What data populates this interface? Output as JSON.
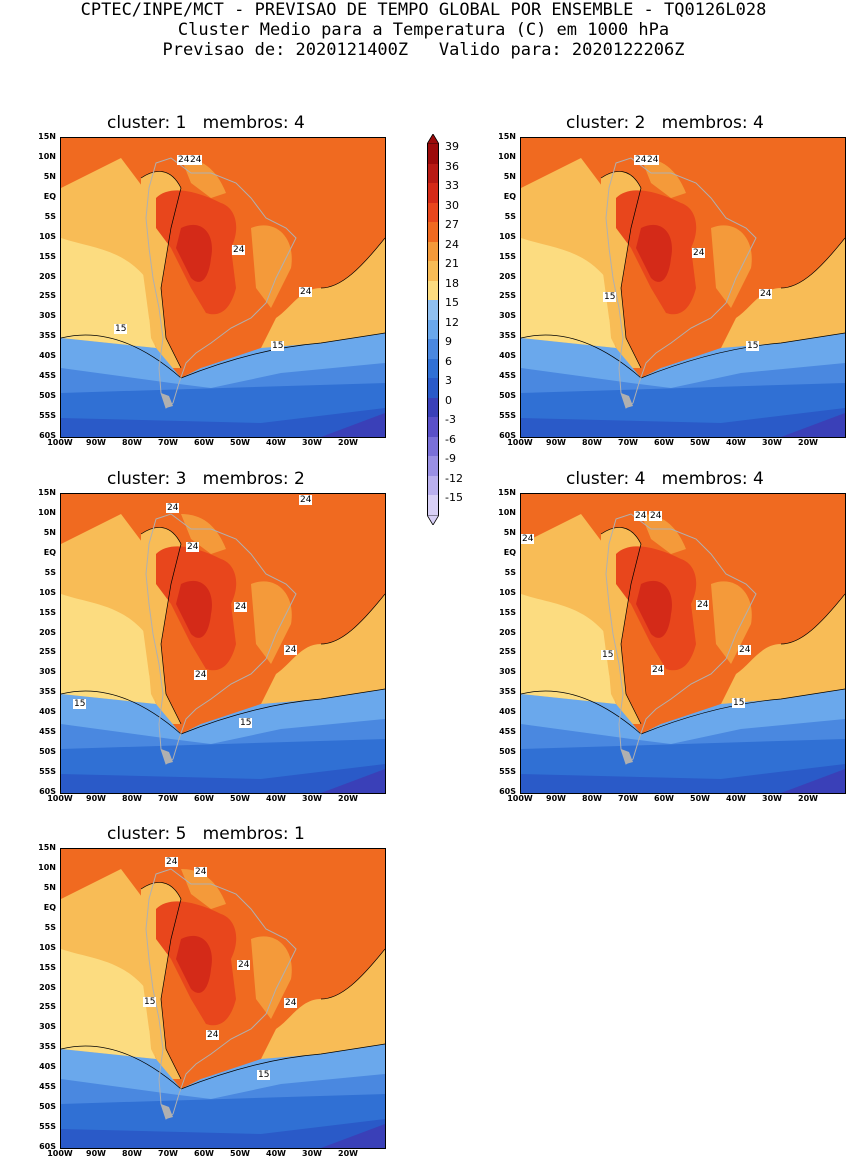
{
  "header": {
    "line1": "CPTEC/INPE/MCT - PREVISAO DE TEMPO GLOBAL POR ENSEMBLE - TQ0126L028",
    "line2": "Cluster Medio para a Temperatura (C) em 1000 hPa",
    "line3": "Previsao de: 2020121400Z   Valido para: 2020122206Z"
  },
  "axes": {
    "lat_labels": [
      "15N",
      "10N",
      "5N",
      "EQ",
      "5S",
      "10S",
      "15S",
      "20S",
      "25S",
      "30S",
      "35S",
      "40S",
      "45S",
      "50S",
      "55S",
      "60S"
    ],
    "lon_labels": [
      "100W",
      "90W",
      "80W",
      "70W",
      "60W",
      "50W",
      "40W",
      "30W",
      "20W"
    ]
  },
  "colorbar": {
    "labels": [
      "39",
      "36",
      "33",
      "30",
      "27",
      "24",
      "21",
      "18",
      "15",
      "12",
      "9",
      "6",
      "3",
      "0",
      "-3",
      "-6",
      "-9",
      "-12",
      "-15"
    ],
    "colors": [
      "#9c0a0a",
      "#b81a14",
      "#d42a18",
      "#e8461c",
      "#f06a20",
      "#f49a3a",
      "#f8bc56",
      "#fcdc80",
      "#90c0f0",
      "#6aa8ec",
      "#4a88e0",
      "#3070d4",
      "#2a5ac8",
      "#3a40b8",
      "#5a50c8",
      "#7a70d8",
      "#9a90e4",
      "#bab0ee",
      "#d8d0f6"
    ]
  },
  "clusters": [
    {
      "title": "cluster: 1   membros: 4",
      "labels": [
        "24",
        "24",
        "24",
        "24",
        "15",
        "15"
      ]
    },
    {
      "title": "cluster: 2   membros: 4",
      "labels": [
        "24",
        "24",
        "24",
        "24",
        "15",
        "15"
      ]
    },
    {
      "title": "cluster: 3   membros: 2",
      "labels": [
        "24",
        "24",
        "24",
        "24",
        "24",
        "24",
        "15",
        "15"
      ]
    },
    {
      "title": "cluster: 4   membros: 4",
      "labels": [
        "24",
        "24",
        "24",
        "24",
        "24",
        "24",
        "15",
        "15"
      ]
    },
    {
      "title": "cluster: 5   membros: 1",
      "labels": [
        "24",
        "24",
        "24",
        "24",
        "24",
        "15",
        "15"
      ]
    }
  ]
}
